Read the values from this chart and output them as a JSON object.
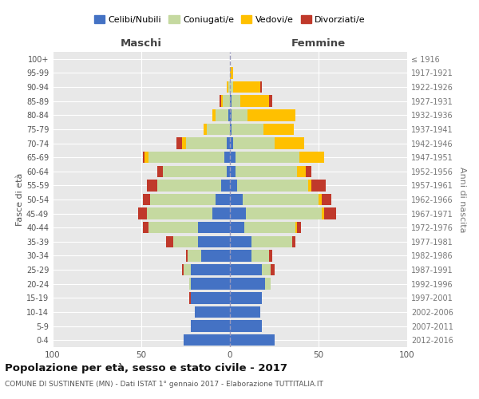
{
  "age_groups": [
    "100+",
    "95-99",
    "90-94",
    "85-89",
    "80-84",
    "75-79",
    "70-74",
    "65-69",
    "60-64",
    "55-59",
    "50-54",
    "45-49",
    "40-44",
    "35-39",
    "30-34",
    "25-29",
    "20-24",
    "15-19",
    "10-14",
    "5-9",
    "0-4"
  ],
  "birth_years": [
    "≤ 1916",
    "1917-1921",
    "1922-1926",
    "1927-1931",
    "1932-1936",
    "1937-1941",
    "1942-1946",
    "1947-1951",
    "1952-1956",
    "1957-1961",
    "1962-1966",
    "1967-1971",
    "1972-1976",
    "1977-1981",
    "1982-1986",
    "1987-1991",
    "1992-1996",
    "1997-2001",
    "2002-2006",
    "2007-2011",
    "2012-2016"
  ],
  "maschi": {
    "celibi": [
      0,
      0,
      0,
      0,
      1,
      0,
      2,
      3,
      2,
      5,
      8,
      10,
      18,
      18,
      16,
      22,
      22,
      22,
      20,
      22,
      26
    ],
    "coniugati": [
      0,
      0,
      1,
      4,
      7,
      13,
      23,
      43,
      36,
      36,
      37,
      37,
      28,
      14,
      8,
      4,
      1,
      0,
      0,
      0,
      0
    ],
    "vedovi": [
      0,
      0,
      1,
      1,
      2,
      2,
      2,
      2,
      0,
      0,
      0,
      0,
      0,
      0,
      0,
      0,
      0,
      0,
      0,
      0,
      0
    ],
    "divorziati": [
      0,
      0,
      0,
      1,
      0,
      0,
      3,
      1,
      3,
      6,
      4,
      5,
      3,
      4,
      1,
      1,
      0,
      1,
      0,
      0,
      0
    ]
  },
  "femmine": {
    "nubili": [
      0,
      0,
      0,
      1,
      1,
      1,
      2,
      3,
      3,
      4,
      7,
      9,
      8,
      12,
      12,
      18,
      20,
      18,
      17,
      18,
      25
    ],
    "coniugate": [
      0,
      0,
      2,
      5,
      9,
      18,
      23,
      36,
      35,
      40,
      43,
      43,
      29,
      23,
      10,
      5,
      3,
      0,
      0,
      0,
      0
    ],
    "vedove": [
      0,
      2,
      15,
      16,
      27,
      17,
      17,
      14,
      5,
      2,
      2,
      1,
      1,
      0,
      0,
      0,
      0,
      0,
      0,
      0,
      0
    ],
    "divorziate": [
      0,
      0,
      1,
      2,
      0,
      0,
      0,
      0,
      3,
      8,
      5,
      7,
      2,
      2,
      2,
      2,
      0,
      0,
      0,
      0,
      0
    ]
  },
  "xlim": 100,
  "color_celibi": "#4472c4",
  "color_coniugati": "#c5d9a0",
  "color_vedovi": "#ffc000",
  "color_divorziati": "#c0392b",
  "title": "Popolazione per età, sesso e stato civile - 2017",
  "subtitle": "COMUNE DI SUSTINENTE (MN) - Dati ISTAT 1° gennaio 2017 - Elaborazione TUTTITALIA.IT",
  "xlabel_left": "Maschi",
  "xlabel_right": "Femmine",
  "ylabel_left": "Fasce di età",
  "ylabel_right": "Anni di nascita",
  "legend_labels": [
    "Celibi/Nubili",
    "Coniugati/e",
    "Vedovi/e",
    "Divorziati/e"
  ],
  "bg_color": "#e8e8e8"
}
